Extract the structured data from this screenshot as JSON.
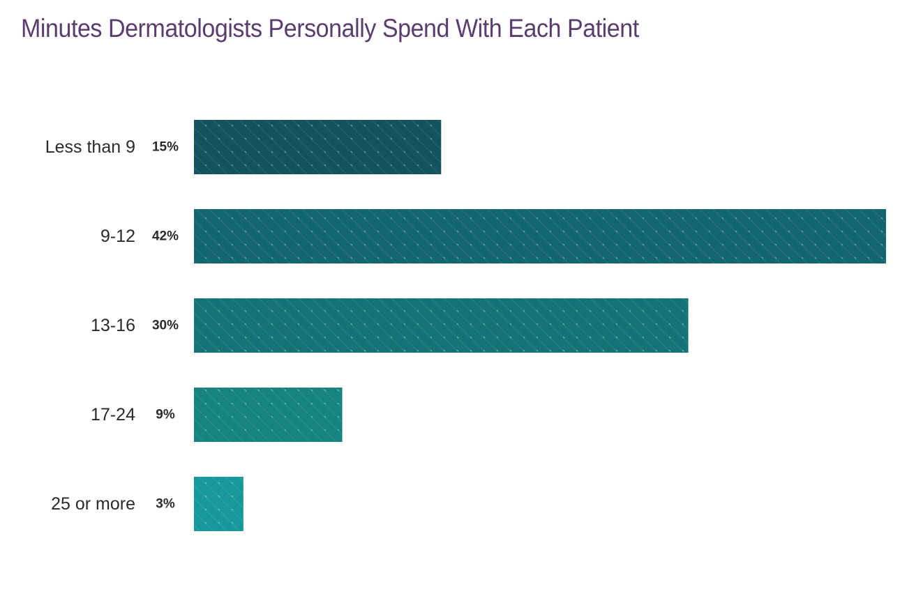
{
  "chart_data": {
    "type": "bar",
    "orientation": "horizontal",
    "title": "Minutes Dermatologists Personally Spend With Each Patient",
    "xlabel": "",
    "ylabel": "",
    "categories": [
      "Less than 9",
      "9-12",
      "13-16",
      "17-24",
      "25 or more"
    ],
    "values": [
      15,
      42,
      30,
      9,
      3
    ],
    "value_labels": [
      "15%",
      "42%",
      "30%",
      "9%",
      "3%"
    ],
    "unit": "%",
    "xlim": [
      0,
      42
    ],
    "grid": false,
    "legend": "none",
    "bar_colors": [
      "#13535f",
      "#136570",
      "#147376",
      "#16837f",
      "#17989a"
    ]
  }
}
